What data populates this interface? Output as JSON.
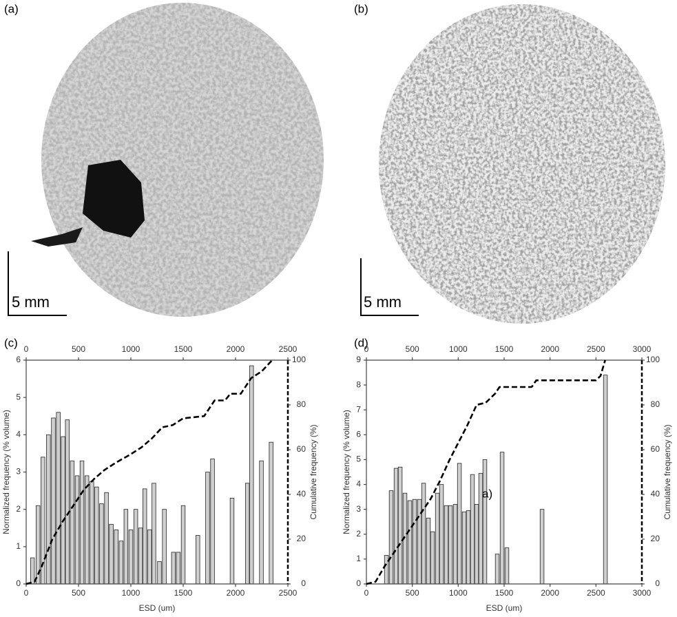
{
  "panels": [
    {
      "label": "(a)",
      "scale_label": "5 mm"
    },
    {
      "label": "(b)",
      "scale_label": "5 mm"
    }
  ],
  "chart_data": [
    {
      "type": "bar",
      "label": "(c)",
      "color": "#cfcfcf",
      "x": [
        60,
        113,
        160,
        213,
        260,
        307,
        353,
        393,
        440,
        487,
        533,
        580,
        627,
        673,
        720,
        767,
        813,
        860,
        907,
        953,
        1000,
        1047,
        1093,
        1133,
        1180,
        1220,
        1273,
        1320,
        1407,
        1453,
        1500,
        1640,
        1733,
        1780,
        1967,
        2113,
        2153,
        2247,
        2340
      ],
      "values": [
        0.7,
        2.1,
        3.4,
        4.0,
        4.45,
        4.6,
        3.95,
        4.4,
        3.3,
        2.9,
        3.3,
        2.9,
        2.75,
        2.6,
        2.15,
        2.45,
        1.6,
        1.45,
        1.15,
        2.0,
        1.45,
        2.0,
        1.5,
        2.55,
        1.45,
        2.7,
        0.6,
        2.0,
        0.85,
        0.85,
        2.1,
        1.3,
        3.0,
        3.35,
        2.3,
        2.7,
        5.85,
        3.3,
        3.8
      ],
      "cumulative": {
        "axis": "y2",
        "color": "#000000",
        "x": [
          0,
          80,
          150,
          250,
          350,
          450,
          550,
          650,
          750,
          850,
          1000,
          1100,
          1200,
          1300,
          1400,
          1500,
          1700,
          1800,
          1900,
          1950,
          2050,
          2150,
          2250,
          2350
        ],
        "values": [
          0,
          1,
          8,
          20,
          28,
          35,
          42,
          47,
          51,
          54,
          58,
          61,
          65,
          70,
          71,
          74,
          75,
          82,
          82,
          85,
          85,
          92,
          95,
          100
        ]
      },
      "xlim": [
        0,
        2500
      ],
      "xticks": [
        0,
        500,
        1000,
        1500,
        2000,
        2500
      ],
      "ylim": [
        0,
        6
      ],
      "yticks": [
        0,
        1,
        2,
        3,
        4,
        5,
        6
      ],
      "y2lim": [
        0,
        100
      ],
      "y2ticks": [
        0,
        20,
        40,
        60,
        80,
        100
      ],
      "xlabel": "ESD (um)",
      "ylabel": "Normalized frequency (% volume)",
      "y2label": "Cumulative frequency (%)"
    },
    {
      "type": "bar",
      "label": "(d)",
      "color": "#cfcfcf",
      "x": [
        218,
        270,
        323,
        368,
        420,
        473,
        525,
        578,
        623,
        675,
        720,
        773,
        818,
        870,
        915,
        968,
        1013,
        1065,
        1110,
        1155,
        1200,
        1245,
        1290,
        1425,
        1478,
        1530,
        1913,
        2603
      ],
      "values": [
        1.15,
        3.75,
        4.65,
        4.7,
        3.65,
        3.35,
        3.4,
        3.4,
        4.05,
        2.65,
        2.1,
        3.65,
        4.0,
        3.15,
        3.15,
        3.2,
        4.85,
        2.9,
        2.95,
        4.4,
        3.2,
        4.45,
        5.0,
        1.2,
        5.3,
        1.45,
        3.0,
        8.4
      ],
      "cumulative": {
        "axis": "y2",
        "color": "#000000",
        "x": [
          0,
          100,
          200,
          300,
          400,
          500,
          600,
          700,
          800,
          900,
          1000,
          1100,
          1200,
          1300,
          1400,
          1450,
          1800,
          1850,
          2500,
          2550,
          2600
        ],
        "values": [
          0,
          1,
          8,
          14,
          20,
          26,
          32,
          38,
          46,
          55,
          63,
          71,
          80,
          81,
          85,
          88,
          88,
          91,
          91,
          93,
          100
        ]
      },
      "annotation": "a)",
      "xlim": [
        0,
        3000
      ],
      "xticks": [
        0,
        500,
        1000,
        1500,
        2000,
        2500,
        3000
      ],
      "ylim": [
        0,
        9
      ],
      "yticks": [
        0,
        1,
        2,
        3,
        4,
        5,
        6,
        7,
        8,
        9
      ],
      "y2lim": [
        0,
        100
      ],
      "y2ticks": [
        0,
        20,
        40,
        60,
        80,
        100
      ],
      "xlabel": "ESD (um)",
      "ylabel": "Normalized frequency (% volume)",
      "y2label": "Cumulative frequency (%)"
    }
  ]
}
